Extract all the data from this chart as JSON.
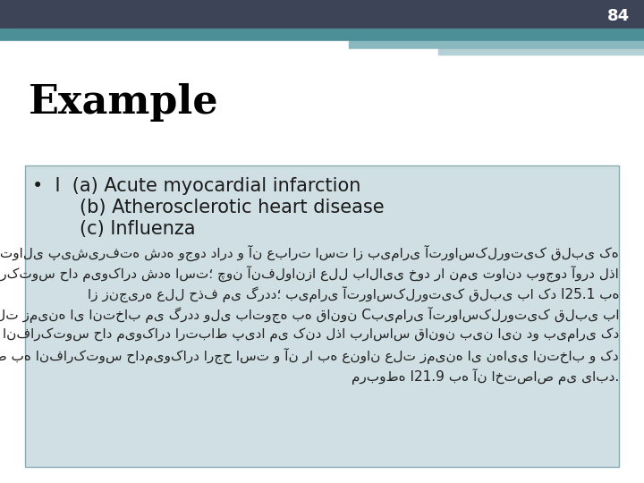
{
  "slide_bg": "#ffffff",
  "header_dark_color": "#3d4457",
  "header_teal_color": "#4d8f96",
  "header_light1_color": "#8ab8bf",
  "header_light2_color": "#b5d0d4",
  "page_number": "84",
  "title": "Example",
  "title_fontsize": 32,
  "title_color": "#000000",
  "box_bg": "#cfdfe3",
  "box_border": "#8aadb5",
  "bullet_text_line1": "•  I  (a) Acute myocardial infarction",
  "bullet_text_line2": "        (b) Atherosclerotic heart disease",
  "bullet_text_line3": "        (c) Influenza",
  "bullet_fontsize": 15,
  "body_lines": [
    "در این گواهی یک توالی پیشیرفته شده وجود دارد و آن عبارت است از بیماری آترواسکلروتیک قلبی که",
    "منجر به انفارکتوس حاد میوکارد شده است؛ چون آنفلوانزا علل بالایی خود را نمی تواند بوجود آورد لذا",
    "از زنجیره علل حذف می گردد؛ بیماری آترواسکلروتیک قلبی با کد I25.1 به",
    "عنوان علت زمینه ای انتخاب می گردد ولی باتوجه به قانون Cبیماری آترواسکلروتیک قلبی با",
    "انفارکتوس حاد میوکارد ارتباط پیدا می کند لذا براساس قانون بین این دو بیماری کد",
    "مربوط به انفارکتوس حادمیوکارد ارجح است و آن را به عنوان علت زمینه ای نهایی انتخاب و کد",
    "مربوطه I21.9 به آن اختصاص می یابد."
  ],
  "body_fontsize": 11,
  "body_color": "#222222"
}
